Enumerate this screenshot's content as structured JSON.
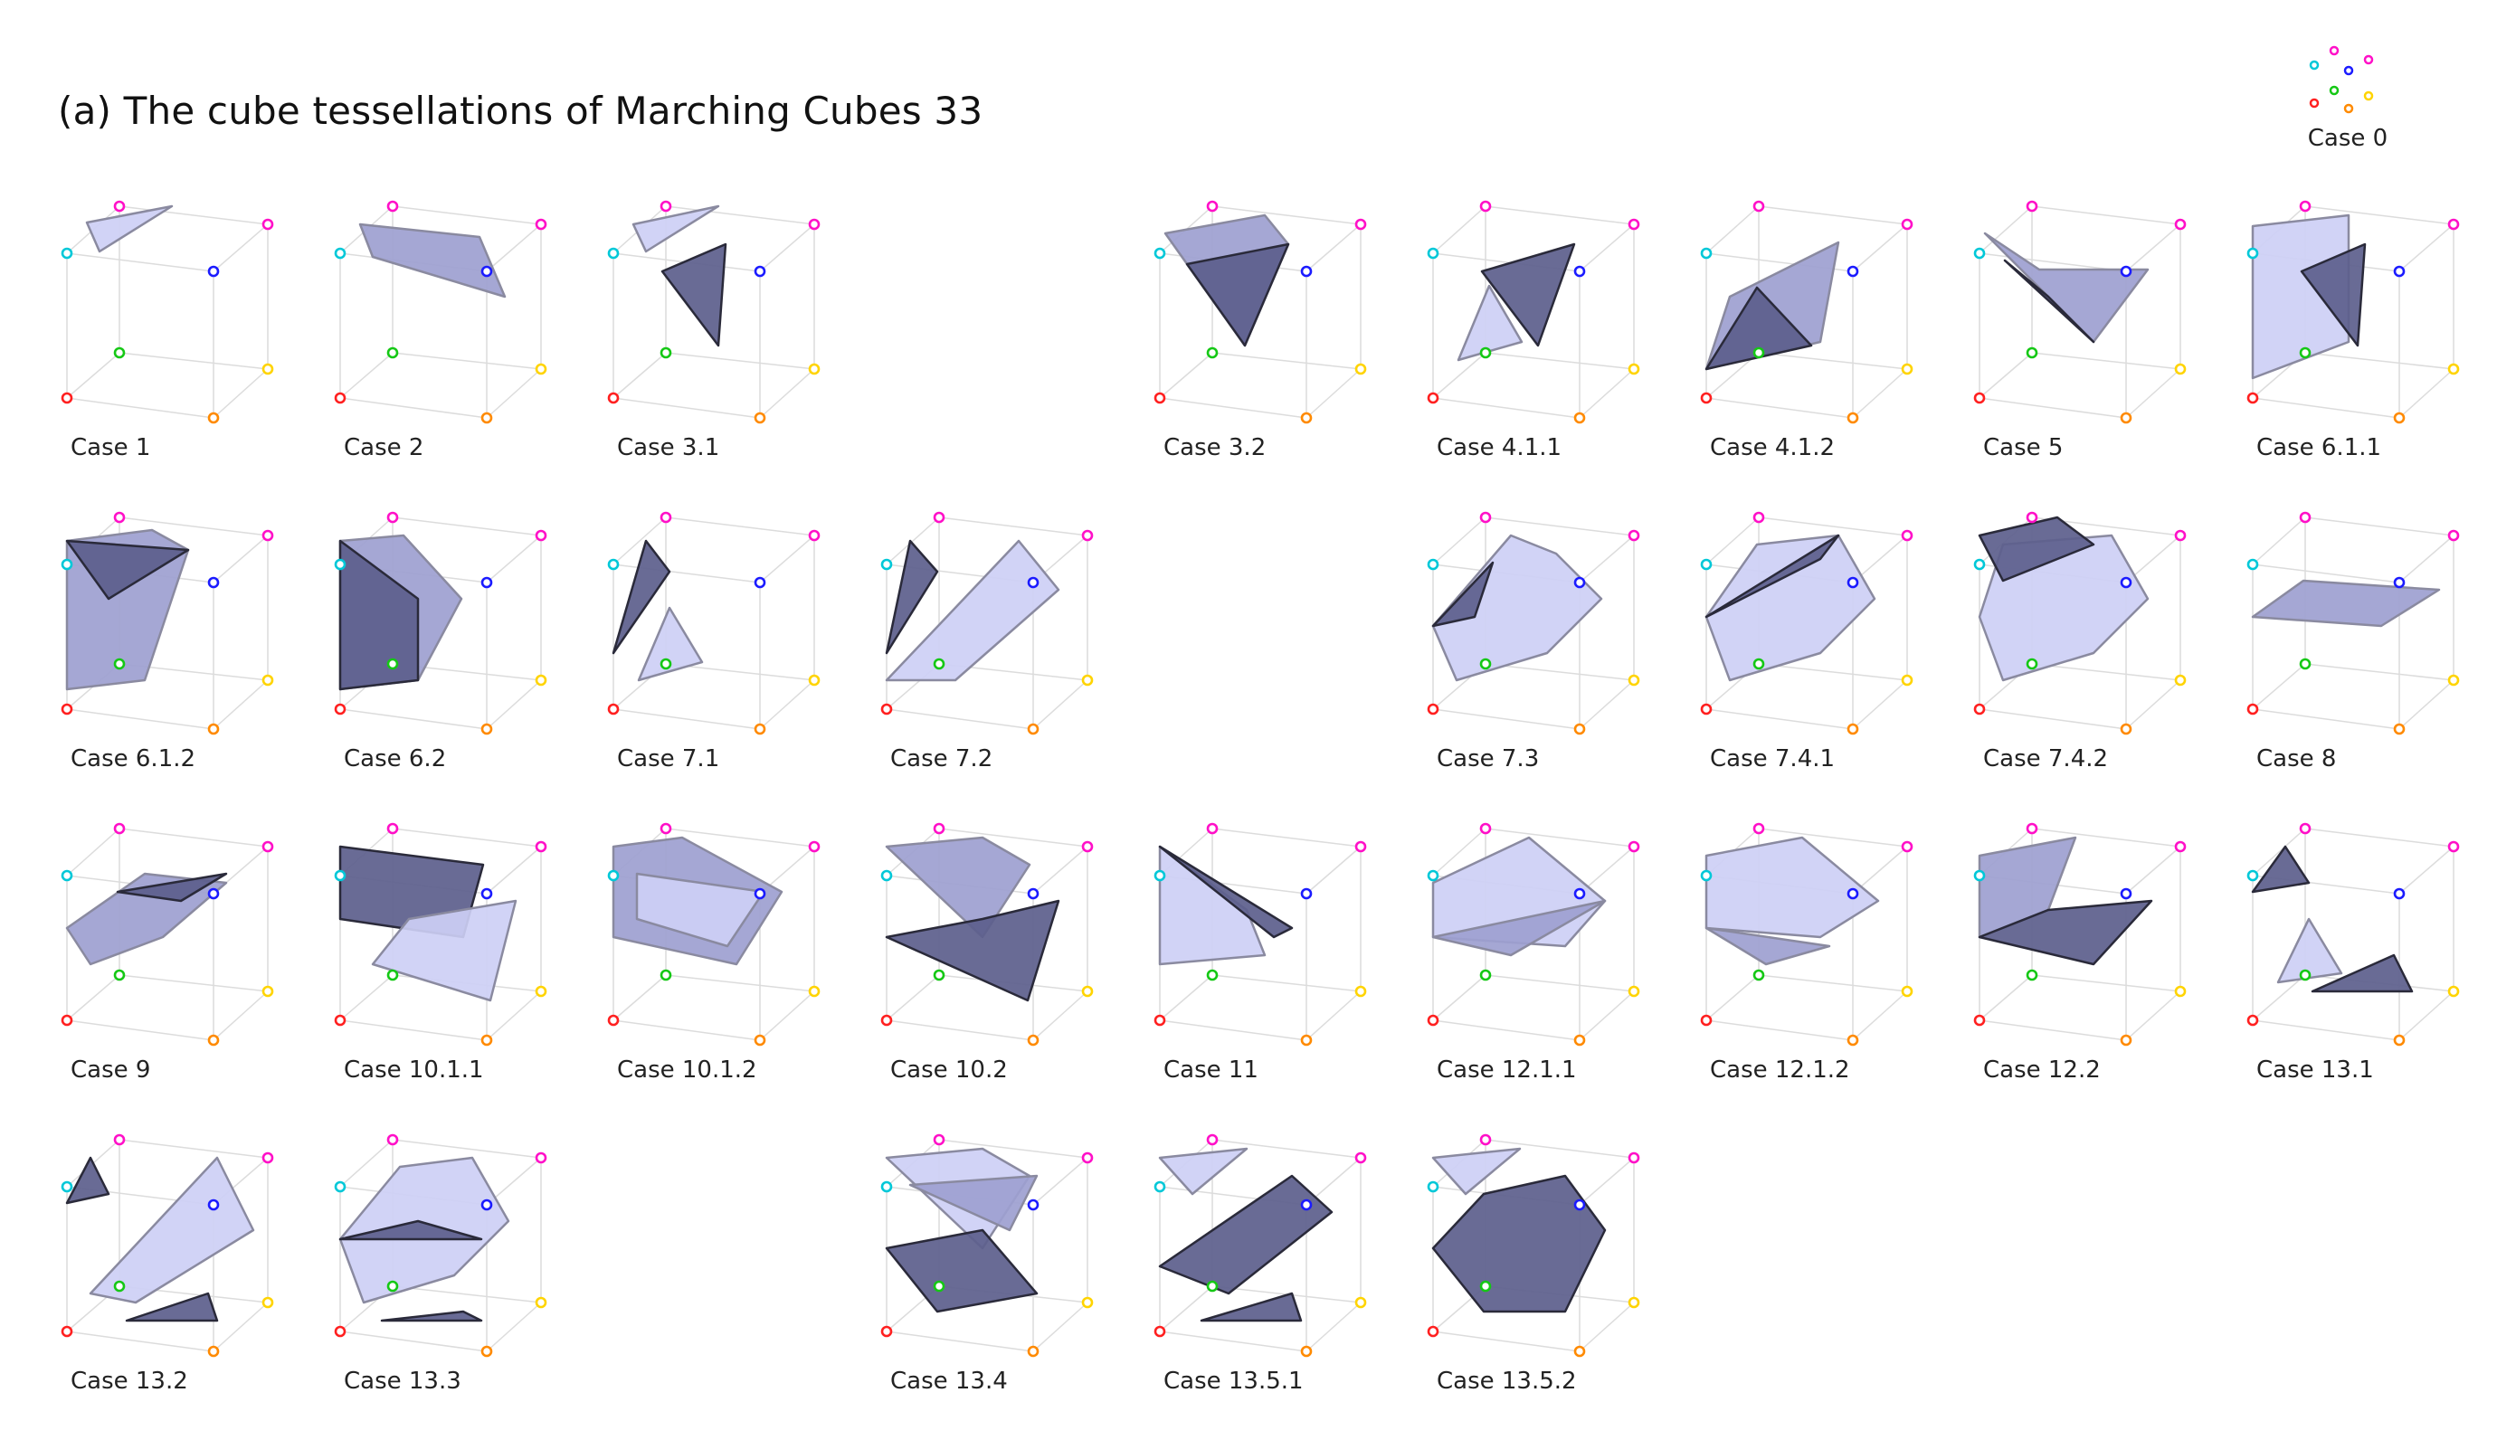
{
  "title": "(a) The cube tessellations of Marching Cubes 33",
  "legend": {
    "label": "Case 0"
  },
  "colors": {
    "light_face": "#cdcff5",
    "mid_face": "#9d9fd0",
    "dark_face": "#5c5e8c",
    "cube_edge": "#d6d6d6",
    "vertex_colors": [
      "#ff2020",
      "#ff8a00",
      "#ffd400",
      "#15c815",
      "#1b1bff",
      "#00c8d8",
      "#ff10c8",
      "#ff10c8"
    ]
  },
  "cases": [
    {
      "label": "Case 1"
    },
    {
      "label": "Case 2"
    },
    {
      "label": "Case 3.1"
    },
    {
      "label": "Case 3.2"
    },
    {
      "label": "Case 4.1.1"
    },
    {
      "label": "Case 4.1.2"
    },
    {
      "label": "Case 5"
    },
    {
      "label": "Case 6.1.1"
    },
    {
      "label": "Case 6.1.2"
    },
    {
      "label": "Case 6.2"
    },
    {
      "label": "Case 7.1"
    },
    {
      "label": "Case 7.2"
    },
    {
      "label": "Case 7.3"
    },
    {
      "label": "Case 7.4.1"
    },
    {
      "label": "Case 7.4.2"
    },
    {
      "label": "Case 8"
    },
    {
      "label": "Case 9"
    },
    {
      "label": "Case 10.1.1"
    },
    {
      "label": "Case 10.1.2"
    },
    {
      "label": "Case 10.2"
    },
    {
      "label": "Case 11"
    },
    {
      "label": "Case 12.1.1"
    },
    {
      "label": "Case 12.1.2"
    },
    {
      "label": "Case 12.2"
    },
    {
      "label": "Case 13.1"
    },
    {
      "label": "Case 13.2"
    },
    {
      "label": "Case 13.3"
    },
    {
      "label": "Case 13.4"
    },
    {
      "label": "Case 13.5.1"
    },
    {
      "label": "Case 13.5.2"
    }
  ]
}
